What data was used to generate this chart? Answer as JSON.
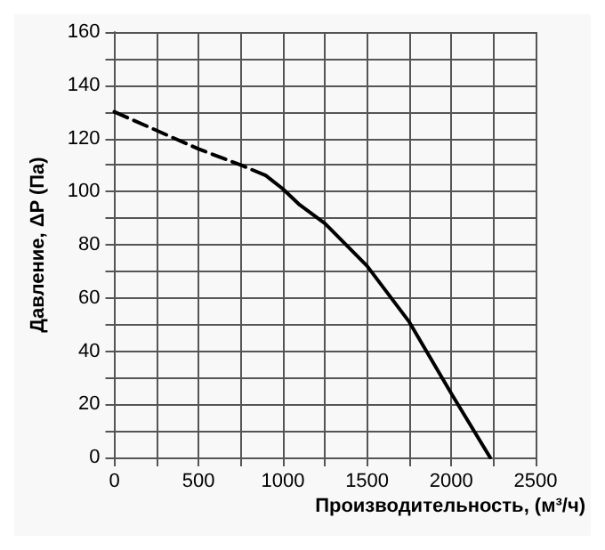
{
  "chart_data": {
    "type": "line",
    "xlabel": "Производительность, (м³/ч)",
    "ylabel": "Давление, ΔP (Па)",
    "xlim": [
      0,
      2500
    ],
    "ylim": [
      0,
      160
    ],
    "xticks": [
      0,
      {
        "value": 250,
        "label": null
      },
      500,
      {
        "value": 750,
        "label": null
      },
      1000,
      {
        "value": 1250,
        "label": null
      },
      1500,
      {
        "value": 1750,
        "label": null
      },
      2000,
      {
        "value": 2250,
        "label": null
      },
      2500
    ],
    "yticks": [
      0,
      {
        "value": 10,
        "label": null
      },
      20,
      {
        "value": 30,
        "label": null
      },
      40,
      {
        "value": 50,
        "label": null
      },
      60,
      {
        "value": 70,
        "label": null
      },
      80,
      {
        "value": 90,
        "label": null
      },
      100,
      {
        "value": 110,
        "label": null
      },
      120,
      {
        "value": 130,
        "label": null
      },
      140,
      {
        "value": 150,
        "label": null
      },
      160
    ],
    "grid": true,
    "marker": "none",
    "series": [
      {
        "color": "#000000",
        "line_style": "dashed",
        "x": [
          0,
          250,
          500,
          750,
          900
        ],
        "values": [
          130,
          123,
          116,
          110,
          106
        ]
      },
      {
        "color": "#000000",
        "line_style": "solid",
        "x": [
          900,
          1000,
          1100,
          1250,
          1500,
          1750,
          2000,
          2230
        ],
        "values": [
          106,
          101,
          95,
          88,
          72,
          51,
          24,
          0
        ]
      }
    ]
  }
}
